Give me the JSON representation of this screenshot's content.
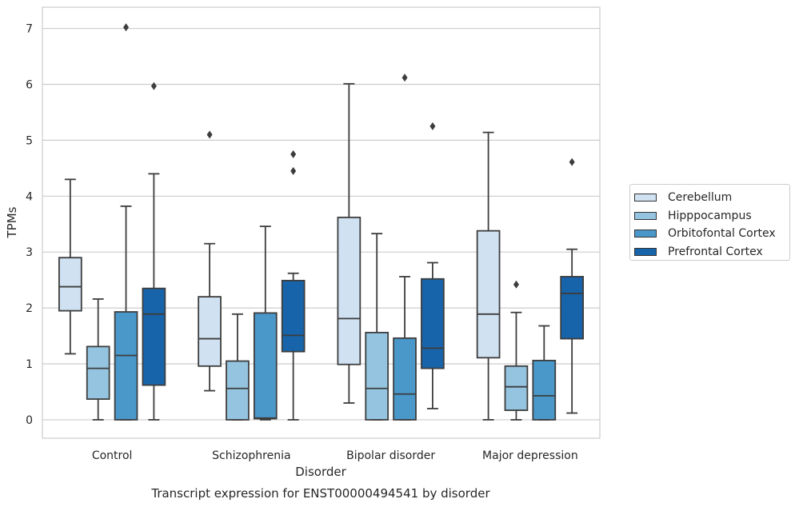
{
  "chart_data": {
    "type": "box",
    "title": "Transcript expression for ENST00000494541 by disorder",
    "xlabel": "Disorder",
    "ylabel": "TPMs",
    "ylim": [
      -0.33,
      7.38
    ],
    "yticks": [
      0,
      1,
      2,
      3,
      4,
      5,
      6,
      7
    ],
    "grid": true,
    "legend_position": "right",
    "categories": [
      "Control",
      "Schizophrenia",
      "Bipolar disorder",
      "Major depression"
    ],
    "series": [
      {
        "name": "Cerebellum",
        "color": "#d0e1f2",
        "boxes": [
          {
            "whisker_low": 1.18,
            "q1": 1.95,
            "median": 2.38,
            "q3": 2.9,
            "whisker_high": 4.3,
            "outliers": []
          },
          {
            "whisker_low": 0.52,
            "q1": 0.96,
            "median": 1.45,
            "q3": 2.2,
            "whisker_high": 3.15,
            "outliers": [
              5.1
            ]
          },
          {
            "whisker_low": 0.3,
            "q1": 0.99,
            "median": 1.81,
            "q3": 3.62,
            "whisker_high": 6.01,
            "outliers": []
          },
          {
            "whisker_low": 0.0,
            "q1": 1.11,
            "median": 1.89,
            "q3": 3.38,
            "whisker_high": 5.14,
            "outliers": []
          }
        ]
      },
      {
        "name": "Hipppocampus",
        "color": "#94c4df",
        "boxes": [
          {
            "whisker_low": 0.0,
            "q1": 0.37,
            "median": 0.92,
            "q3": 1.31,
            "whisker_high": 2.16,
            "outliers": []
          },
          {
            "whisker_low": 0.0,
            "q1": 0.0,
            "median": 0.56,
            "q3": 1.05,
            "whisker_high": 1.89,
            "outliers": []
          },
          {
            "whisker_low": 0.0,
            "q1": 0.0,
            "median": 0.56,
            "q3": 1.56,
            "whisker_high": 3.33,
            "outliers": []
          },
          {
            "whisker_low": 0.0,
            "q1": 0.17,
            "median": 0.59,
            "q3": 0.96,
            "whisker_high": 1.92,
            "outliers": [
              2.42
            ]
          }
        ]
      },
      {
        "name": "Orbitofontal Cortex",
        "color": "#4a98c9",
        "boxes": [
          {
            "whisker_low": 0.0,
            "q1": 0.0,
            "median": 1.15,
            "q3": 1.93,
            "whisker_high": 3.82,
            "outliers": [
              7.02
            ]
          },
          {
            "whisker_low": 0.0,
            "q1": 0.02,
            "median": 0.03,
            "q3": 1.91,
            "whisker_high": 3.46,
            "outliers": []
          },
          {
            "whisker_low": 0.0,
            "q1": 0.0,
            "median": 0.46,
            "q3": 1.46,
            "whisker_high": 2.56,
            "outliers": [
              6.12
            ]
          },
          {
            "whisker_low": 0.0,
            "q1": 0.0,
            "median": 0.43,
            "q3": 1.06,
            "whisker_high": 1.68,
            "outliers": []
          }
        ]
      },
      {
        "name": "Prefrontal Cortex",
        "color": "#1764ab",
        "boxes": [
          {
            "whisker_low": 0.0,
            "q1": 0.62,
            "median": 1.89,
            "q3": 2.35,
            "whisker_high": 4.4,
            "outliers": [
              5.97
            ]
          },
          {
            "whisker_low": 0.0,
            "q1": 1.22,
            "median": 1.51,
            "q3": 2.49,
            "whisker_high": 2.62,
            "outliers": [
              4.45,
              4.75
            ]
          },
          {
            "whisker_low": 0.2,
            "q1": 0.92,
            "median": 1.28,
            "q3": 2.52,
            "whisker_high": 2.81,
            "outliers": [
              5.25
            ]
          },
          {
            "whisker_low": 0.12,
            "q1": 1.45,
            "median": 2.26,
            "q3": 2.56,
            "whisker_high": 3.05,
            "outliers": [
              4.61
            ]
          }
        ]
      }
    ]
  }
}
